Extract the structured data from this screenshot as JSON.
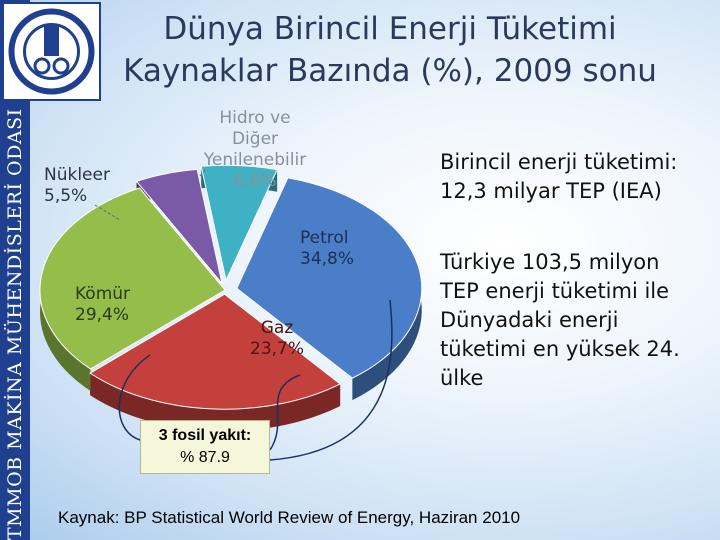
{
  "title_line1": "Dünya Birincil Enerji Tüketimi",
  "title_line2": "Kaynaklar Bazında (%), 2009 sonu",
  "sidebar_text": "TMMOB MAKİNA MÜHENDİSLERİ ODASI",
  "logo_text": "TMMOB MAKİNA MÜHENDİSLERİ ODASI",
  "info_line1": "Birincil enerji tüketimi:",
  "info_line2": "12,3 milyar TEP (IEA)",
  "turkey_lines": [
    "Türkiye 103,5 milyon",
    "TEP enerji tüketimi ile",
    "Dünyadaki enerji",
    "tüketimi en yüksek 24.",
    "ülke"
  ],
  "callout_line1": "3 fosil yakıt:",
  "callout_line2": "% 87.9",
  "source": "Kaynak: BP Statistical World Review of Energy, Haziran 2010",
  "chart_data": {
    "type": "pie",
    "title": "Dünya Birincil Enerji Tüketimi Kaynaklar Bazında (%), 2009 sonu",
    "slices": [
      {
        "name": "Petrol",
        "value": 34.8,
        "label": "34,8%",
        "color": "#4a7ec8"
      },
      {
        "name": "Gaz",
        "value": 23.7,
        "label": "23,7%",
        "color": "#c4403c"
      },
      {
        "name": "Kömür",
        "value": 29.4,
        "label": "29,4%",
        "color": "#94bd4a"
      },
      {
        "name": "Nükleer",
        "value": 5.5,
        "label": "5,5%",
        "color": "#7a5aa6"
      },
      {
        "name": "Hidro ve Diğer Yenilenebilir",
        "value": 6.6,
        "label": "6,6%",
        "color": "#3fb1c4"
      }
    ]
  },
  "colors": {
    "sidebar": "#1f3f8f",
    "title": "#2b3a5c"
  }
}
